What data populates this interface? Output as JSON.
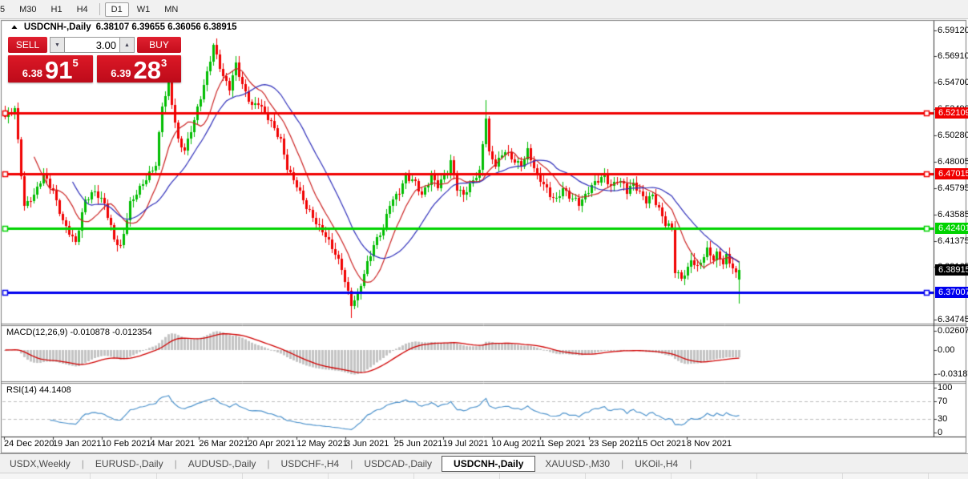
{
  "window": {
    "title_symbol": "USDCNH-,Daily",
    "title_quote": "6.38107 6.39655 6.36056 6.38915"
  },
  "toolbar": {
    "timeframes": [
      "5",
      "M30",
      "H1",
      "H4",
      "D1",
      "W1",
      "MN"
    ],
    "active": "D1"
  },
  "trade_panel": {
    "sell_label": "SELL",
    "buy_label": "BUY",
    "volume": "3.00",
    "sell_big": "6.38",
    "sell_main": "91",
    "sell_sup": "5",
    "buy_big": "6.39",
    "buy_main": "28",
    "buy_sup": "3"
  },
  "indicators": {
    "macd_label": "MACD(12,26,9)",
    "macd_values": "-0.010878 -0.012354",
    "rsi_label": "RSI(14)",
    "rsi_value": "44.1408"
  },
  "price_axis": {
    "ticks": [
      {
        "label": "6.59120",
        "price": 6.5912
      },
      {
        "label": "6.56910",
        "price": 6.5691
      },
      {
        "label": "6.54700",
        "price": 6.547
      },
      {
        "label": "6.52490",
        "price": 6.5249
      },
      {
        "label": "6.50280",
        "price": 6.5028
      },
      {
        "label": "6.48005",
        "price": 6.48005
      },
      {
        "label": "6.45795",
        "price": 6.45795
      },
      {
        "label": "6.43585",
        "price": 6.43585
      },
      {
        "label": "6.41375",
        "price": 6.41375
      },
      {
        "label": "6.39165",
        "price": 6.39165
      },
      {
        "label": "6.34745",
        "price": 6.34745
      }
    ],
    "line_labels": [
      {
        "text": "6.52109",
        "price": 6.52109,
        "color": "#f00000"
      },
      {
        "text": "6.47015",
        "price": 6.47015,
        "color": "#f00000"
      },
      {
        "text": "6.42401",
        "price": 6.42401,
        "color": "#00d300"
      },
      {
        "text": "6.38915",
        "price": 6.38915,
        "color": "#000000"
      },
      {
        "text": "6.37007",
        "price": 6.37007,
        "color": "#0000ee"
      }
    ],
    "macd_ticks": [
      {
        "label": "0.02607",
        "value": 0.02607
      },
      {
        "label": "0.00",
        "value": 0.0
      },
      {
        "label": "-0.03187",
        "value": -0.03187
      }
    ],
    "rsi_ticks": [
      {
        "label": "100",
        "value": 100
      },
      {
        "label": "70",
        "value": 70
      },
      {
        "label": "30",
        "value": 30
      },
      {
        "label": "0",
        "value": 0
      }
    ]
  },
  "x_axis": {
    "dates": [
      "24 Dec 2020",
      "19 Jan 2021",
      "10 Feb 2021",
      "4 Mar 2021",
      "26 Mar 2021",
      "20 Apr 2021",
      "12 May 2021",
      "3 Jun 2021",
      "25 Jun 2021",
      "19 Jul 2021",
      "10 Aug 2021",
      "1 Sep 2021",
      "23 Sep 2021",
      "15 Oct 2021",
      "8 Nov 2021"
    ]
  },
  "tabs": [
    {
      "label": "USDX,Weekly",
      "active": false
    },
    {
      "label": "EURUSD-,Daily",
      "active": false
    },
    {
      "label": "AUDUSD-,Daily",
      "active": false
    },
    {
      "label": "USDCHF-,H4",
      "active": false
    },
    {
      "label": "USDCAD-,Daily",
      "active": false
    },
    {
      "label": "USDCNH-,Daily",
      "active": true
    },
    {
      "label": "XAUUSD-,M30",
      "active": false
    },
    {
      "label": "UKOil-,H4",
      "active": false
    }
  ],
  "colors": {
    "candle_up": "#00bd00",
    "candle_down": "#f00000",
    "ma_fast": "#cc2222",
    "ma_slow": "#3030bb",
    "macd_hist": "#c4c4c4",
    "macd_signal": "#d00000",
    "rsi_line": "#4f94cd",
    "rsi_levels": "#bdbdbd",
    "panel_red": "#cf1020"
  },
  "chart_data": {
    "type": "candlestick",
    "symbol": "USDCNH",
    "timeframe": "Daily",
    "last_candle": {
      "open": 6.38107,
      "high": 6.39655,
      "low": 6.36056,
      "close": 6.38915
    },
    "bid": 6.38915,
    "ask": 6.39283,
    "price_top": 6.599,
    "price_bottom": 6.344,
    "num_candles": 230,
    "close_waypoints": [
      [
        0,
        6.518
      ],
      [
        3,
        6.525
      ],
      [
        6,
        6.443
      ],
      [
        9,
        6.452
      ],
      [
        12,
        6.47
      ],
      [
        15,
        6.455
      ],
      [
        18,
        6.43
      ],
      [
        22,
        6.412
      ],
      [
        25,
        6.448
      ],
      [
        28,
        6.455
      ],
      [
        31,
        6.445
      ],
      [
        34,
        6.415
      ],
      [
        36,
        6.408
      ],
      [
        39,
        6.445
      ],
      [
        43,
        6.462
      ],
      [
        47,
        6.478
      ],
      [
        49,
        6.528
      ],
      [
        51,
        6.545
      ],
      [
        54,
        6.498
      ],
      [
        56,
        6.49
      ],
      [
        59,
        6.515
      ],
      [
        63,
        6.555
      ],
      [
        65,
        6.578
      ],
      [
        68,
        6.552
      ],
      [
        70,
        6.542
      ],
      [
        72,
        6.563
      ],
      [
        74,
        6.545
      ],
      [
        77,
        6.527
      ],
      [
        79,
        6.53
      ],
      [
        83,
        6.513
      ],
      [
        86,
        6.498
      ],
      [
        88,
        6.475
      ],
      [
        91,
        6.46
      ],
      [
        94,
        6.442
      ],
      [
        98,
        6.425
      ],
      [
        100,
        6.418
      ],
      [
        103,
        6.403
      ],
      [
        105,
        6.39
      ],
      [
        108,
        6.36
      ],
      [
        110,
        6.368
      ],
      [
        113,
        6.395
      ],
      [
        115,
        6.41
      ],
      [
        118,
        6.425
      ],
      [
        120,
        6.445
      ],
      [
        123,
        6.455
      ],
      [
        125,
        6.468
      ],
      [
        128,
        6.463
      ],
      [
        130,
        6.452
      ],
      [
        133,
        6.468
      ],
      [
        135,
        6.46
      ],
      [
        138,
        6.472
      ],
      [
        139,
        6.48
      ],
      [
        141,
        6.458
      ],
      [
        143,
        6.452
      ],
      [
        146,
        6.465
      ],
      [
        148,
        6.472
      ],
      [
        150,
        6.518
      ],
      [
        151,
        6.487
      ],
      [
        153,
        6.478
      ],
      [
        156,
        6.49
      ],
      [
        158,
        6.483
      ],
      [
        161,
        6.477
      ],
      [
        163,
        6.49
      ],
      [
        164,
        6.483
      ],
      [
        166,
        6.468
      ],
      [
        168,
        6.462
      ],
      [
        170,
        6.452
      ],
      [
        172,
        6.448
      ],
      [
        174,
        6.458
      ],
      [
        176,
        6.451
      ],
      [
        178,
        6.448
      ],
      [
        179,
        6.445
      ],
      [
        181,
        6.452
      ],
      [
        183,
        6.46
      ],
      [
        185,
        6.465
      ],
      [
        187,
        6.468
      ],
      [
        189,
        6.459
      ],
      [
        191,
        6.465
      ],
      [
        193,
        6.461
      ],
      [
        194,
        6.455
      ],
      [
        196,
        6.462
      ],
      [
        198,
        6.454
      ],
      [
        200,
        6.447
      ],
      [
        202,
        6.452
      ],
      [
        204,
        6.44
      ],
      [
        206,
        6.428
      ],
      [
        208,
        6.425
      ],
      [
        209,
        6.388
      ],
      [
        211,
        6.382
      ],
      [
        213,
        6.39
      ],
      [
        214,
        6.398
      ],
      [
        216,
        6.391
      ],
      [
        218,
        6.401
      ],
      [
        219,
        6.406
      ],
      [
        221,
        6.398
      ],
      [
        222,
        6.403
      ],
      [
        224,
        6.395
      ],
      [
        225,
        6.401
      ],
      [
        227,
        6.391
      ],
      [
        228,
        6.385
      ],
      [
        229,
        6.38915
      ]
    ],
    "wick_overrides": {
      "108": {
        "low": 6.349
      },
      "150": {
        "high": 6.532
      }
    },
    "horizontal_lines": [
      {
        "price": 6.52109,
        "color": "#f00000",
        "width": 3
      },
      {
        "price": 6.47015,
        "color": "#f00000",
        "width": 3
      },
      {
        "price": 6.42401,
        "color": "#00d300",
        "width": 3
      },
      {
        "price": 6.37007,
        "color": "#0000ee",
        "width": 3
      }
    ],
    "indicators": {
      "ma_fast_period": 10,
      "ma_slow_period": 22,
      "macd_params": [
        12,
        26,
        9
      ],
      "macd_current": [
        -0.010878,
        -0.012354
      ],
      "macd_scale": {
        "top": 0.02607,
        "zero": 0.0,
        "bottom": -0.03187
      },
      "rsi_period": 14,
      "rsi_current": 44.1408,
      "rsi_levels": [
        70,
        30
      ],
      "rsi_scale": [
        0,
        30,
        70,
        100
      ]
    }
  }
}
